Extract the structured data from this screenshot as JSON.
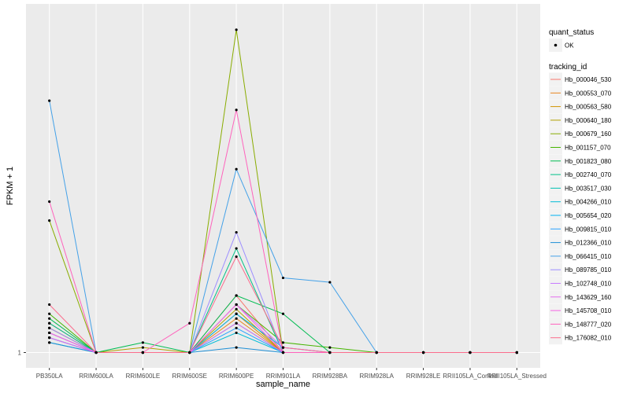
{
  "chart_data": {
    "type": "line",
    "xlabel": "sample_name",
    "ylabel": "FPKM + 1",
    "y_tick_labels": [
      "1"
    ],
    "y_scale": "log",
    "ylim": [
      0.97,
      2.0
    ],
    "grid": true,
    "legend_position": "right",
    "categories": [
      "PB350LA",
      "RRIM600LA",
      "RRIM600LE",
      "RRIM600SE",
      "RRIM600PE",
      "RRIM901LA",
      "RRIM928BA",
      "RRIM928LA",
      "RRIM928LE",
      "RRII105LA_Control",
      "RRII105LA_Stressed"
    ],
    "shape_legend": {
      "title": "quant_status",
      "items": [
        "OK"
      ]
    },
    "color_legend_title": "tracking_id",
    "series": [
      {
        "name": "Hb_000046_530",
        "color": "#F8766D",
        "values": [
          1.06,
          1.0,
          1.0,
          1.0,
          1.12,
          1.0,
          1.0,
          1.0,
          1.0,
          1.0,
          1.0
        ]
      },
      {
        "name": "Hb_000553_070",
        "color": "#E7851E",
        "values": [
          1.05,
          1.0,
          1.0,
          1.0,
          1.07,
          1.0,
          1.0,
          1.0,
          1.0,
          1.0,
          1.0
        ]
      },
      {
        "name": "Hb_000563_580",
        "color": "#D09400",
        "values": [
          1.04,
          1.0,
          1.0,
          1.0,
          1.08,
          1.0,
          1.0,
          1.0,
          1.0,
          1.0,
          1.0
        ]
      },
      {
        "name": "Hb_000640_180",
        "color": "#B2A100",
        "values": [
          1.05,
          1.0,
          1.01,
          1.0,
          1.09,
          1.0,
          1.0,
          1.0,
          1.0,
          1.0,
          1.0
        ]
      },
      {
        "name": "Hb_000679_160",
        "color": "#89AC00",
        "values": [
          1.3,
          1.0,
          1.0,
          1.0,
          1.9,
          1.0,
          1.0,
          1.0,
          1.0,
          1.0,
          1.0
        ]
      },
      {
        "name": "Hb_001157_070",
        "color": "#45B500",
        "values": [
          1.08,
          1.0,
          1.0,
          1.0,
          1.1,
          1.02,
          1.01,
          1.0,
          1.0,
          1.0,
          1.0
        ]
      },
      {
        "name": "Hb_001823_080",
        "color": "#00BC51",
        "values": [
          1.07,
          1.0,
          1.02,
          1.0,
          1.12,
          1.08,
          1.0,
          1.0,
          1.0,
          1.0,
          1.0
        ]
      },
      {
        "name": "Hb_002740_070",
        "color": "#00C087",
        "values": [
          1.06,
          1.0,
          1.0,
          1.0,
          1.23,
          1.0,
          1.0,
          1.0,
          1.0,
          1.0,
          1.0
        ]
      },
      {
        "name": "Hb_003517_030",
        "color": "#00C0B2",
        "values": [
          1.03,
          1.0,
          1.0,
          1.0,
          1.06,
          1.0,
          1.0,
          1.0,
          1.0,
          1.0,
          1.0
        ]
      },
      {
        "name": "Hb_004266_010",
        "color": "#00BCD6",
        "values": [
          1.02,
          1.0,
          1.0,
          1.0,
          1.04,
          1.0,
          1.0,
          1.0,
          1.0,
          1.0,
          1.0
        ]
      },
      {
        "name": "Hb_005654_020",
        "color": "#00B3F2",
        "values": [
          1.04,
          1.0,
          1.0,
          1.0,
          1.08,
          1.01,
          1.0,
          1.0,
          1.0,
          1.0,
          1.0
        ]
      },
      {
        "name": "Hb_009815_010",
        "color": "#29A3FF",
        "values": [
          1.03,
          1.0,
          1.0,
          1.0,
          1.05,
          1.0,
          1.0,
          1.0,
          1.0,
          1.0,
          1.0
        ]
      },
      {
        "name": "Hb_012366_010",
        "color": "#1E8FD6",
        "values": [
          1.02,
          1.0,
          1.0,
          1.0,
          1.01,
          1.0,
          1.0,
          1.0,
          1.0,
          1.0,
          1.0
        ]
      },
      {
        "name": "Hb_066415_010",
        "color": "#44A1E8",
        "values": [
          1.65,
          1.0,
          1.0,
          1.0,
          1.44,
          1.16,
          1.15,
          1.0,
          1.0,
          1.0,
          1.0
        ]
      },
      {
        "name": "Hb_089785_010",
        "color": "#9C8DFF",
        "values": [
          1.05,
          1.0,
          1.0,
          1.0,
          1.27,
          1.0,
          1.0,
          1.0,
          1.0,
          1.0,
          1.0
        ]
      },
      {
        "name": "Hb_102748_010",
        "color": "#C77CFF",
        "values": [
          1.04,
          1.0,
          1.0,
          1.0,
          1.1,
          1.01,
          1.0,
          1.0,
          1.0,
          1.0,
          1.0
        ]
      },
      {
        "name": "Hb_143629_160",
        "color": "#E46BEE",
        "values": [
          1.03,
          1.0,
          1.0,
          1.0,
          1.06,
          1.0,
          1.0,
          1.0,
          1.0,
          1.0,
          1.0
        ]
      },
      {
        "name": "Hb_145708_010",
        "color": "#F564E3",
        "values": [
          1.04,
          1.0,
          1.0,
          1.0,
          1.1,
          1.0,
          1.0,
          1.0,
          1.0,
          1.0,
          1.0
        ]
      },
      {
        "name": "Hb_148777_020",
        "color": "#FF62BC",
        "values": [
          1.35,
          1.0,
          1.0,
          1.06,
          1.62,
          1.0,
          1.0,
          1.0,
          1.0,
          1.0,
          1.0
        ]
      },
      {
        "name": "Hb_176082_010",
        "color": "#FB6C8C",
        "values": [
          1.1,
          1.0,
          1.0,
          1.0,
          1.21,
          1.01,
          1.0,
          1.0,
          1.0,
          1.0,
          1.0
        ]
      }
    ]
  }
}
